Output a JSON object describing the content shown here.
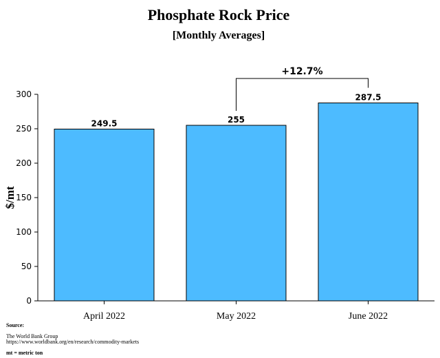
{
  "chart_data": {
    "type": "bar",
    "title": "Phosphate Rock Price",
    "subtitle": "[Monthly Averages]",
    "ylabel": "$/mt",
    "xlabel": "",
    "categories": [
      "April 2022",
      "May 2022",
      "June 2022"
    ],
    "values": [
      249.5,
      255,
      287.5
    ],
    "value_labels": [
      "249.5",
      "255",
      "287.5"
    ],
    "ylim": [
      0,
      300
    ],
    "yticks": [
      0,
      50,
      100,
      150,
      200,
      250,
      300
    ],
    "grid": false,
    "legend": "none",
    "bar_color": "#4dbbff",
    "annotation": {
      "text": "+12.7%",
      "from_category": "May 2022",
      "to_category": "June 2022"
    }
  },
  "footer": {
    "source_heading": "Source:",
    "source_name": "The World Bank Group",
    "source_url": "https://www.worldbank.org/en/research/commodity-markets",
    "unit_note": "mt = metric ton"
  }
}
